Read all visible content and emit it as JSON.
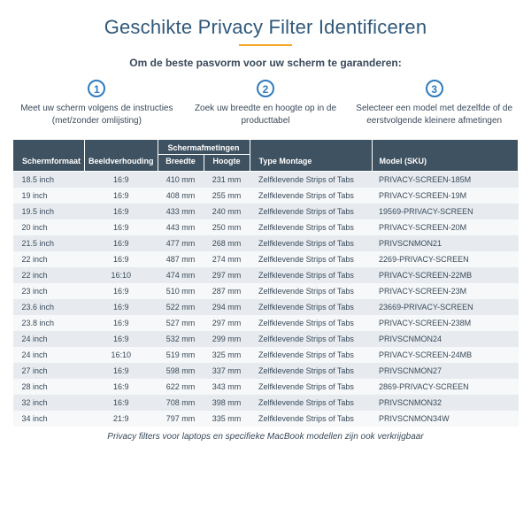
{
  "title": "Geschikte Privacy Filter Identificeren",
  "subtitle": "Om de beste pasvorm voor uw scherm te garanderen:",
  "steps": [
    {
      "num": "1",
      "text": "Meet uw scherm volgens de instructies (met/zonder omlijsting)"
    },
    {
      "num": "2",
      "text": "Zoek uw breedte en hoogte op in de producttabel"
    },
    {
      "num": "3",
      "text": "Selecteer een model met dezelfde of de eerstvolgende kleinere afmetingen"
    }
  ],
  "table": {
    "header": {
      "size": "Schermformaat",
      "ratio": "Beeldverhouding",
      "dims_group": "Schermafmetingen",
      "width": "Breedte",
      "height": "Hoogte",
      "mount": "Type Montage",
      "sku": "Model (SKU)"
    },
    "rows": [
      {
        "size": "18.5 inch",
        "ratio": "16:9",
        "w": "410 mm",
        "h": "231 mm",
        "mount": "Zelfklevende Strips of Tabs",
        "sku": "PRIVACY-SCREEN-185M"
      },
      {
        "size": "19 inch",
        "ratio": "16:9",
        "w": "408 mm",
        "h": "255 mm",
        "mount": "Zelfklevende Strips of Tabs",
        "sku": "PRIVACY-SCREEN-19M"
      },
      {
        "size": "19.5 inch",
        "ratio": "16:9",
        "w": "433 mm",
        "h": "240 mm",
        "mount": "Zelfklevende Strips of Tabs",
        "sku": "19569-PRIVACY-SCREEN"
      },
      {
        "size": "20 inch",
        "ratio": "16:9",
        "w": "443 mm",
        "h": "250 mm",
        "mount": "Zelfklevende Strips of Tabs",
        "sku": "PRIVACY-SCREEN-20M"
      },
      {
        "size": "21.5 inch",
        "ratio": "16:9",
        "w": "477 mm",
        "h": "268 mm",
        "mount": "Zelfklevende Strips of Tabs",
        "sku": "PRIVSCNMON21"
      },
      {
        "size": "22 inch",
        "ratio": "16:9",
        "w": "487 mm",
        "h": "274 mm",
        "mount": "Zelfklevende Strips of Tabs",
        "sku": "2269-PRIVACY-SCREEN"
      },
      {
        "size": "22 inch",
        "ratio": "16:10",
        "w": "474 mm",
        "h": "297 mm",
        "mount": "Zelfklevende Strips of Tabs",
        "sku": "PRIVACY-SCREEN-22MB"
      },
      {
        "size": "23 inch",
        "ratio": "16:9",
        "w": "510 mm",
        "h": "287 mm",
        "mount": "Zelfklevende Strips of Tabs",
        "sku": "PRIVACY-SCREEN-23M"
      },
      {
        "size": "23.6 inch",
        "ratio": "16:9",
        "w": "522 mm",
        "h": "294 mm",
        "mount": "Zelfklevende Strips of Tabs",
        "sku": "23669-PRIVACY-SCREEN"
      },
      {
        "size": "23.8 inch",
        "ratio": "16:9",
        "w": "527 mm",
        "h": "297 mm",
        "mount": "Zelfklevende Strips of Tabs",
        "sku": "PRIVACY-SCREEN-238M"
      },
      {
        "size": "24 inch",
        "ratio": "16:9",
        "w": "532 mm",
        "h": "299 mm",
        "mount": "Zelfklevende Strips of Tabs",
        "sku": "PRIVSCNMON24"
      },
      {
        "size": "24 inch",
        "ratio": "16:10",
        "w": "519 mm",
        "h": "325 mm",
        "mount": "Zelfklevende Strips of Tabs",
        "sku": "PRIVACY-SCREEN-24MB"
      },
      {
        "size": "27 inch",
        "ratio": "16:9",
        "w": "598 mm",
        "h": "337 mm",
        "mount": "Zelfklevende Strips of Tabs",
        "sku": "PRIVSCNMON27"
      },
      {
        "size": "28 inch",
        "ratio": "16:9",
        "w": "622 mm",
        "h": "343 mm",
        "mount": "Zelfklevende Strips of Tabs",
        "sku": "2869-PRIVACY-SCREEN"
      },
      {
        "size": "32 inch",
        "ratio": "16:9",
        "w": "708 mm",
        "h": "398 mm",
        "mount": "Zelfklevende Strips of Tabs",
        "sku": "PRIVSCNMON32"
      },
      {
        "size": "34 inch",
        "ratio": "21:9",
        "w": "797 mm",
        "h": "335 mm",
        "mount": "Zelfklevende Strips of Tabs",
        "sku": "PRIVSCNMON34W"
      }
    ]
  },
  "footnote": "Privacy filters voor laptops en specifieke MacBook modellen zijn ook verkrijgbaar",
  "colors": {
    "title": "#2f587a",
    "accent": "#f6a623",
    "circle": "#2f7bbf",
    "thead_bg": "#3f5261",
    "row_even": "#e7ebef",
    "row_odd": "#f6f8f9",
    "text": "#3a4a5a"
  }
}
